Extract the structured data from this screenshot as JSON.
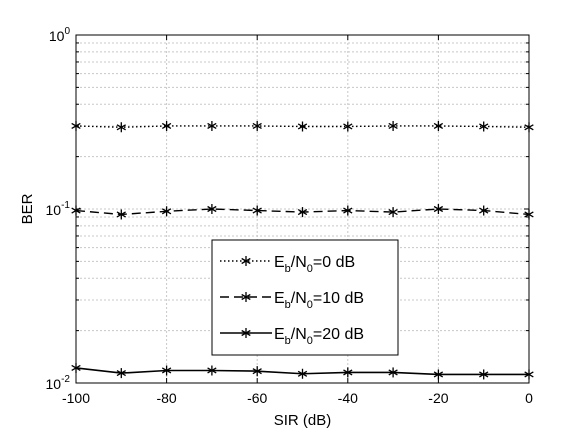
{
  "chart_data": {
    "type": "line",
    "xlabel": "SIR (dB)",
    "ylabel": "BER",
    "x": [
      -100,
      -90,
      -80,
      -70,
      -60,
      -50,
      -40,
      -30,
      -20,
      -10,
      0
    ],
    "xlim": [
      -100,
      0
    ],
    "ylim": [
      0.01,
      1
    ],
    "yscale": "log",
    "grid": true,
    "legend_placement": "lower-center",
    "xticks": [
      "-100",
      "-80",
      "-60",
      "-40",
      "-20",
      "0"
    ],
    "yticks": [
      {
        "base": "10",
        "exp": "-2"
      },
      {
        "base": "10",
        "exp": "-1"
      },
      {
        "base": "10",
        "exp": "0"
      }
    ],
    "series": [
      {
        "name": "Eb/N0=0 dB",
        "legend": {
          "sym": "E",
          "sub": "b",
          "mid": "/N",
          "sub2": "0",
          "rest": "=0 dB"
        },
        "line_style": "dotted",
        "marker": "asterisk",
        "values": [
          0.3,
          0.295,
          0.3,
          0.3,
          0.3,
          0.298,
          0.298,
          0.3,
          0.3,
          0.298,
          0.295
        ]
      },
      {
        "name": "Eb/N0=10 dB",
        "legend": {
          "sym": "E",
          "sub": "b",
          "mid": "/N",
          "sub2": "0",
          "rest": "=10 dB"
        },
        "line_style": "dashed",
        "marker": "asterisk",
        "values": [
          0.098,
          0.093,
          0.097,
          0.1,
          0.098,
          0.096,
          0.098,
          0.096,
          0.1,
          0.098,
          0.093
        ]
      },
      {
        "name": "Eb/N0=20 dB",
        "legend": {
          "sym": "E",
          "sub": "b",
          "mid": "/N",
          "sub2": "0",
          "rest": "=20 dB"
        },
        "line_style": "solid",
        "marker": "asterisk",
        "values": [
          0.0122,
          0.0114,
          0.0118,
          0.0118,
          0.0117,
          0.0113,
          0.0115,
          0.0115,
          0.0112,
          0.0112,
          0.0112
        ]
      }
    ],
    "colors": {
      "line": "#000000",
      "grid": "#c8c8c8",
      "background": "#ffffff"
    }
  }
}
